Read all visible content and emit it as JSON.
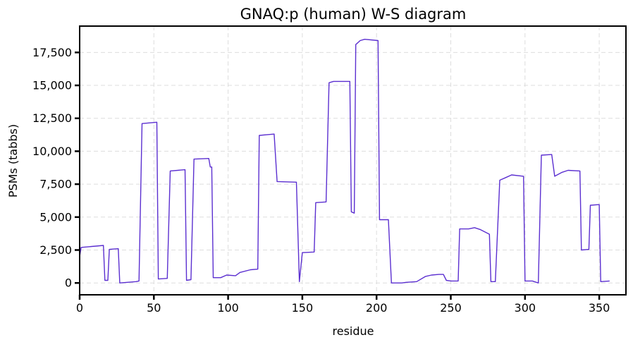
{
  "chart_data": {
    "type": "line",
    "title": "GNAQ:p (human) W-S diagram",
    "xlabel": "residue",
    "ylabel": "PSMs (tabbs)",
    "xlim": [
      0,
      368
    ],
    "ylim": [
      -900,
      19500
    ],
    "xticks": [
      0,
      50,
      100,
      150,
      200,
      250,
      300,
      350
    ],
    "yticks": [
      0,
      2500,
      5000,
      7500,
      10000,
      12500,
      15000,
      17500
    ],
    "ytick_labels": [
      "0",
      "2,500",
      "5,000",
      "7,500",
      "10,000",
      "12,500",
      "15,000",
      "17,500"
    ],
    "grid": true,
    "series": [
      {
        "color": "#5b2fd0",
        "points": [
          [
            0,
            2000
          ],
          [
            1,
            2700
          ],
          [
            16,
            2850
          ],
          [
            17,
            200
          ],
          [
            19,
            200
          ],
          [
            20,
            2550
          ],
          [
            26,
            2600
          ],
          [
            27,
            0
          ],
          [
            38,
            100
          ],
          [
            40,
            150
          ],
          [
            42,
            12100
          ],
          [
            52,
            12200
          ],
          [
            53,
            300
          ],
          [
            59,
            350
          ],
          [
            61,
            8500
          ],
          [
            71,
            8600
          ],
          [
            72,
            200
          ],
          [
            75,
            250
          ],
          [
            77,
            9400
          ],
          [
            87,
            9450
          ],
          [
            88,
            8800
          ],
          [
            89,
            8800
          ],
          [
            90,
            400
          ],
          [
            95,
            400
          ],
          [
            99,
            600
          ],
          [
            105,
            550
          ],
          [
            108,
            800
          ],
          [
            115,
            1000
          ],
          [
            120,
            1050
          ],
          [
            121,
            11200
          ],
          [
            131,
            11300
          ],
          [
            133,
            7700
          ],
          [
            146,
            7650
          ],
          [
            148,
            100
          ],
          [
            150,
            2300
          ],
          [
            158,
            2350
          ],
          [
            159,
            6100
          ],
          [
            166,
            6150
          ],
          [
            168,
            15200
          ],
          [
            171,
            15300
          ],
          [
            182,
            15300
          ],
          [
            183,
            5400
          ],
          [
            185,
            5300
          ],
          [
            186,
            18100
          ],
          [
            187,
            18200
          ],
          [
            189,
            18400
          ],
          [
            192,
            18500
          ],
          [
            201,
            18400
          ],
          [
            202,
            4800
          ],
          [
            208,
            4800
          ],
          [
            210,
            0
          ],
          [
            213,
            0
          ],
          [
            217,
            0
          ],
          [
            220,
            50
          ],
          [
            227,
            100
          ],
          [
            233,
            500
          ],
          [
            237,
            600
          ],
          [
            242,
            650
          ],
          [
            245,
            650
          ],
          [
            247,
            200
          ],
          [
            250,
            150
          ],
          [
            255,
            150
          ],
          [
            256,
            4100
          ],
          [
            262,
            4100
          ],
          [
            266,
            4200
          ],
          [
            270,
            4050
          ],
          [
            276,
            3700
          ],
          [
            277,
            100
          ],
          [
            280,
            100
          ],
          [
            283,
            7800
          ],
          [
            287,
            8000
          ],
          [
            291,
            8200
          ],
          [
            299,
            8100
          ],
          [
            300,
            150
          ],
          [
            305,
            150
          ],
          [
            309,
            0
          ],
          [
            311,
            9700
          ],
          [
            318,
            9750
          ],
          [
            320,
            8100
          ],
          [
            325,
            8400
          ],
          [
            329,
            8550
          ],
          [
            337,
            8500
          ],
          [
            338,
            2500
          ],
          [
            343,
            2550
          ],
          [
            344,
            5900
          ],
          [
            350,
            5950
          ],
          [
            351,
            100
          ],
          [
            357,
            150
          ]
        ]
      }
    ]
  }
}
